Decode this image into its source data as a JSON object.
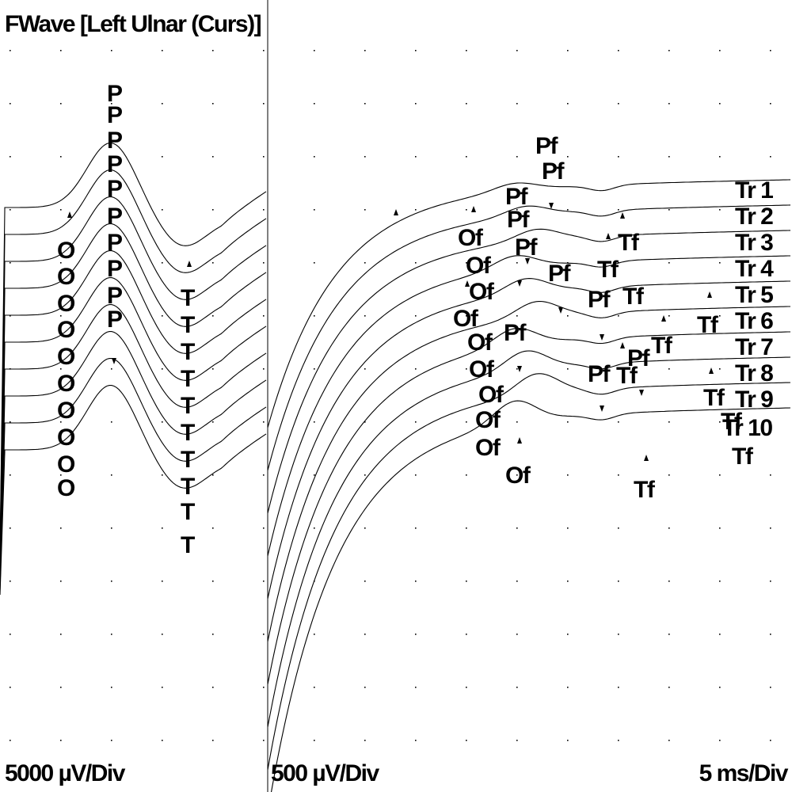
{
  "title": "FWave [Left Ulnar (Curs)]",
  "scales": {
    "left_sensitivity": "5000 µV/Div",
    "right_sensitivity": "500 µV/Div",
    "timebase": "5 ms/Div"
  },
  "chart_data": {
    "type": "line",
    "title": "FWave [Left Ulnar (Curs)]",
    "xlabel": "",
    "ylabel": "",
    "grid": true,
    "traces": [
      "Tr 1",
      "Tr 2",
      "Tr 3",
      "Tr 4",
      "Tr 5",
      "Tr 6",
      "Tr 7",
      "Tr 8",
      "Tr 9",
      "Tr 10"
    ],
    "m_wave_markers": {
      "onset": "O",
      "peak": "P",
      "end": "T"
    },
    "f_wave_markers": {
      "onset": "Of",
      "peak": "Pf",
      "end": "Tf"
    },
    "f_wave_cursor_labels": {
      "onset": [
        "Of",
        "Of",
        "Of",
        "Of",
        "Of",
        "Of",
        "Of",
        "Of",
        "Of",
        "Of"
      ],
      "peak": [
        "Pf",
        "Pf",
        "Pf",
        "Pf",
        "Pf",
        "Pf",
        "Pf",
        "Pf",
        "Pf",
        "Pf"
      ],
      "end": [
        "Tf",
        "Tf",
        "Tf",
        "Tf",
        "Tf",
        "Tf",
        "Tf",
        "Tf",
        "Tf",
        "Tf"
      ]
    }
  }
}
